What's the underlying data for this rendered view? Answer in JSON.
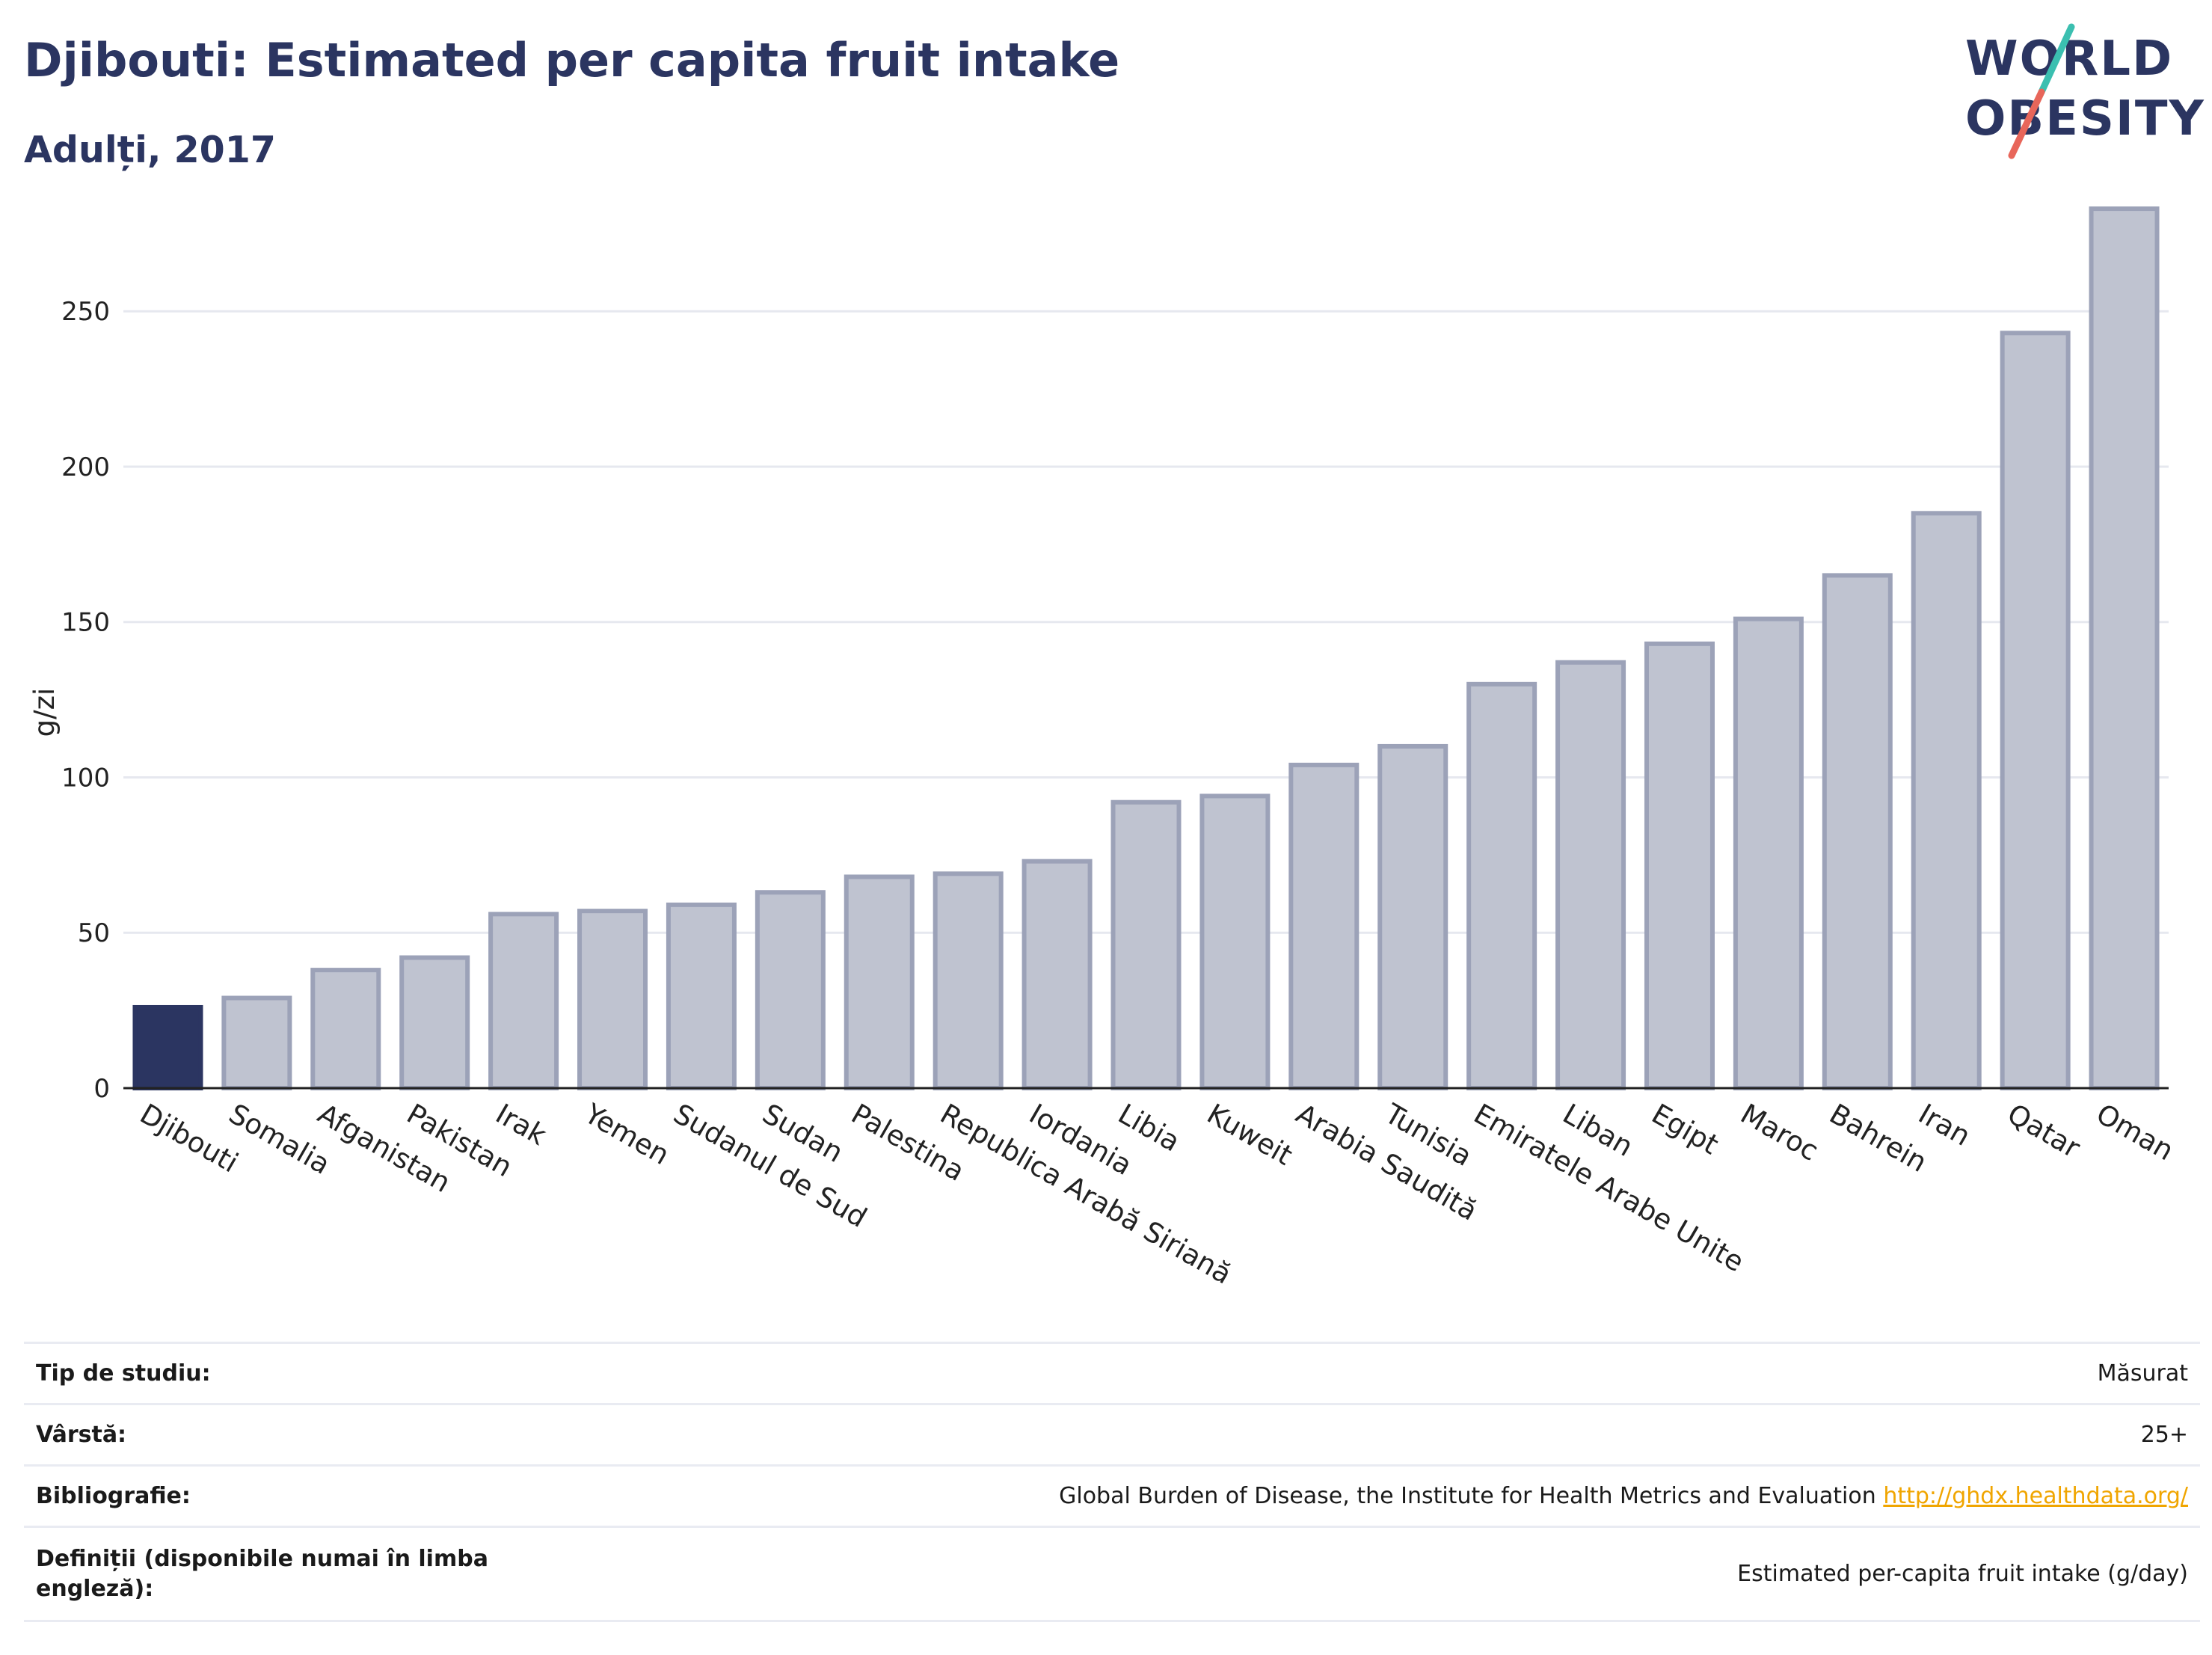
{
  "header": {
    "title": "Djibouti: Estimated per capita fruit intake",
    "subtitle": "Adulți, 2017"
  },
  "logo": {
    "line1": "WORLD",
    "line2": "OBESITY",
    "colors": {
      "text": "#2b3561",
      "slash_top": "#3bbfb0",
      "slash_bottom": "#e8665a"
    }
  },
  "chart_data": {
    "type": "bar",
    "title": "Djibouti: Estimated per capita fruit intake",
    "subtitle": "Adulți, 2017",
    "ylabel": "g/zi",
    "xlabel": "",
    "ylim": [
      0,
      290
    ],
    "yticks": [
      0,
      50,
      100,
      150,
      200,
      250
    ],
    "grid": true,
    "highlight": "Djibouti",
    "categories": [
      "Djibouti",
      "Somalia",
      "Afganistan",
      "Pakistan",
      "Irak",
      "Yemen",
      "Sudanul de Sud",
      "Sudan",
      "Palestina",
      "Republica Arabă Siriană",
      "Iordania",
      "Libia",
      "Kuweit",
      "Arabia Saudită",
      "Tunisia",
      "Emiratele Arabe Unite",
      "Liban",
      "Egipt",
      "Maroc",
      "Bahrein",
      "Iran",
      "Qatar",
      "Oman"
    ],
    "values": [
      26,
      29,
      38,
      42,
      56,
      57,
      59,
      63,
      68,
      69,
      73,
      92,
      94,
      104,
      110,
      130,
      137,
      143,
      151,
      165,
      185,
      243,
      283
    ],
    "colors": {
      "highlight": "#2b3561",
      "bar_fill": "#bfc3d0",
      "bar_stroke": "#9ca2b8",
      "grid": "#e6e8ef",
      "axis": "#222222"
    }
  },
  "info": [
    {
      "label": "Tip de studiu:",
      "value": "Măsurat"
    },
    {
      "label": "Vârstă:",
      "value": "25+"
    },
    {
      "label": "Bibliografie:",
      "value": "Global Burden of Disease, the Institute for Health Metrics and Evaluation",
      "link": "http://ghdx.healthdata.org/"
    },
    {
      "label": "Definiții (disponibile numai în limba engleză):",
      "value": "Estimated per-capita fruit intake (g/day)"
    }
  ]
}
